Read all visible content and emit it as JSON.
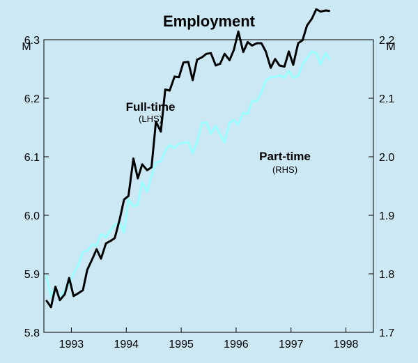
{
  "chart_data": {
    "type": "line",
    "title": "Employment",
    "left_unit": "M",
    "right_unit": "M",
    "x_ticks": [
      "1993",
      "1994",
      "1995",
      "1996",
      "1997",
      "1998"
    ],
    "xlim": [
      1992.5,
      1998.5
    ],
    "y_left_ticks": [
      "5.8",
      "5.9",
      "6.0",
      "6.1",
      "6.2",
      "6.3"
    ],
    "ylim_left": [
      5.8,
      6.3
    ],
    "y_right_ticks": [
      "1.7",
      "1.8",
      "1.9",
      "2.0",
      "2.1",
      "2.2"
    ],
    "ylim_right": [
      1.7,
      2.2
    ],
    "grid": false,
    "series": [
      {
        "name": "Full-time",
        "axis_note": "(LHS)",
        "color": "#000000",
        "x": [
          1992.54,
          1992.63,
          1992.71,
          1992.79,
          1992.88,
          1992.96,
          1993.04,
          1993.13,
          1993.21,
          1993.29,
          1993.38,
          1993.46,
          1993.54,
          1993.63,
          1993.71,
          1993.79,
          1993.88,
          1993.96,
          1994.04,
          1994.13,
          1994.21,
          1994.29,
          1994.38,
          1994.46,
          1994.54,
          1994.63,
          1994.71,
          1994.79,
          1994.88,
          1994.96,
          1995.04,
          1995.13,
          1995.21,
          1995.29,
          1995.38,
          1995.46,
          1995.54,
          1995.63,
          1995.71,
          1995.79,
          1995.88,
          1995.96,
          1996.04,
          1996.13,
          1996.21,
          1996.29,
          1996.38,
          1996.46,
          1996.54,
          1996.63,
          1996.71,
          1996.79,
          1996.88,
          1996.96,
          1997.04,
          1997.13,
          1997.21,
          1997.29,
          1997.38,
          1997.46,
          1997.54,
          1997.63,
          1997.71
        ],
        "values": [
          5.855,
          5.843,
          5.878,
          5.855,
          5.865,
          5.893,
          5.862,
          5.867,
          5.872,
          5.907,
          5.925,
          5.942,
          5.926,
          5.952,
          5.956,
          5.961,
          5.993,
          6.027,
          6.033,
          6.097,
          6.063,
          6.087,
          6.077,
          6.082,
          6.16,
          6.143,
          6.215,
          6.213,
          6.237,
          6.236,
          6.261,
          6.262,
          6.231,
          6.266,
          6.27,
          6.276,
          6.277,
          6.256,
          6.259,
          6.276,
          6.265,
          6.283,
          6.314,
          6.279,
          6.296,
          6.29,
          6.294,
          6.294,
          6.28,
          6.252,
          6.267,
          6.256,
          6.254,
          6.28,
          6.257,
          6.294,
          6.299,
          6.324,
          6.336,
          6.352,
          6.348,
          6.35,
          6.349
        ]
      },
      {
        "name": "Part-time",
        "axis_note": "(RHS)",
        "color": "#99ffff",
        "x": [
          1992.54,
          1992.63,
          1992.71,
          1992.79,
          1992.88,
          1992.96,
          1993.04,
          1993.13,
          1993.21,
          1993.29,
          1993.38,
          1993.46,
          1993.54,
          1993.63,
          1993.71,
          1993.79,
          1993.88,
          1993.96,
          1994.04,
          1994.13,
          1994.21,
          1994.29,
          1994.38,
          1994.46,
          1994.54,
          1994.63,
          1994.71,
          1994.79,
          1994.88,
          1994.96,
          1995.04,
          1995.13,
          1995.21,
          1995.29,
          1995.38,
          1995.46,
          1995.54,
          1995.63,
          1995.71,
          1995.79,
          1995.88,
          1995.96,
          1996.04,
          1996.13,
          1996.21,
          1996.29,
          1996.38,
          1996.46,
          1996.54,
          1996.63,
          1996.71,
          1996.79,
          1996.88,
          1996.96,
          1997.04,
          1997.13,
          1997.21,
          1997.29,
          1997.38,
          1997.46,
          1997.54,
          1997.63,
          1997.71
        ],
        "values": [
          1.798,
          1.762,
          1.778,
          1.758,
          1.773,
          1.782,
          1.8,
          1.815,
          1.838,
          1.839,
          1.85,
          1.848,
          1.868,
          1.862,
          1.874,
          1.884,
          1.888,
          1.87,
          1.928,
          1.915,
          1.918,
          1.957,
          1.94,
          1.967,
          1.99,
          1.992,
          2.01,
          2.02,
          2.015,
          2.022,
          2.024,
          2.025,
          2.006,
          2.025,
          2.058,
          2.059,
          2.039,
          2.053,
          2.038,
          2.025,
          2.058,
          2.063,
          2.055,
          2.075,
          2.073,
          2.095,
          2.095,
          2.11,
          2.13,
          2.136,
          2.136,
          2.139,
          2.135,
          2.147,
          2.135,
          2.138,
          2.158,
          2.168,
          2.18,
          2.177,
          2.158,
          2.177,
          2.166
        ]
      }
    ]
  }
}
